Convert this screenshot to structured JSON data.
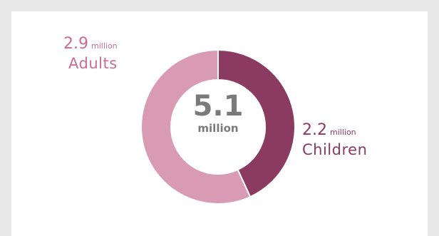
{
  "colors": {
    "adults": "#d99bb3",
    "children": "#8b3a62",
    "adults_text": "#c76e92",
    "children_text": "#8b3a62",
    "center_text": "#7a7a7a"
  },
  "chart_data": {
    "type": "pie",
    "donut": true,
    "center_label": {
      "value": "5.1",
      "unit": "million"
    },
    "slices": [
      {
        "name": "Children",
        "value": 2.2,
        "value_label": "2.2",
        "unit": "million"
      },
      {
        "name": "Adults",
        "value": 2.9,
        "value_label": "2.9",
        "unit": "million"
      }
    ]
  }
}
